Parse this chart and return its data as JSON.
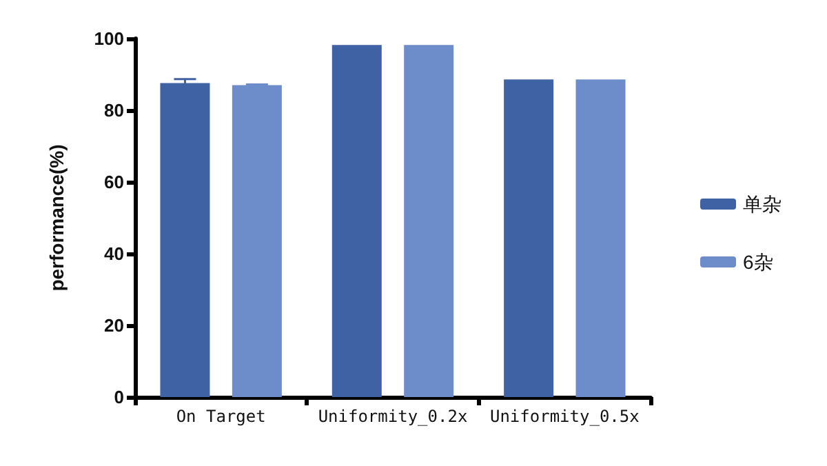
{
  "chart_data": {
    "type": "bar",
    "ylabel": "performance(%)",
    "categories": [
      "On Target",
      "Uniformity_0.2x",
      "Uniformity_0.5x"
    ],
    "series": [
      {
        "name": "单杂",
        "color": "#3f62a4",
        "values": [
          87.6,
          98.2,
          88.6
        ],
        "errors": [
          1.1,
          null,
          null
        ]
      },
      {
        "name": "6杂",
        "color": "#6d8cca",
        "values": [
          87,
          98.2,
          88.6
        ],
        "errors": [
          0.2,
          null,
          null
        ]
      }
    ],
    "ylim": [
      0,
      100
    ],
    "yticks": [
      0,
      20,
      40,
      60,
      80,
      100
    ],
    "grid": false,
    "legend": "right"
  }
}
